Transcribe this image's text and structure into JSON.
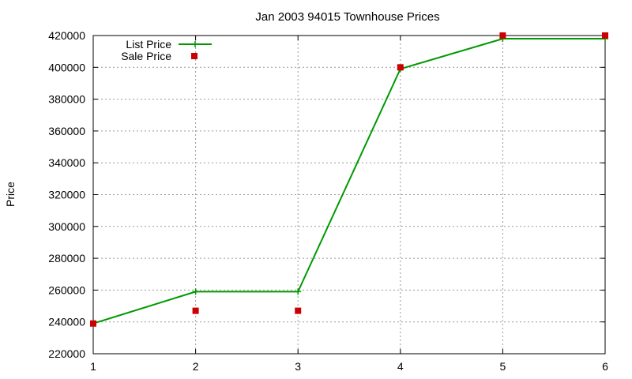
{
  "chart_data": {
    "type": "line",
    "title": "Jan 2003 94015 Townhouse Prices",
    "xlabel": "",
    "ylabel": "Price",
    "x": [
      1,
      2,
      3,
      4,
      5,
      6
    ],
    "xlim": [
      1,
      6
    ],
    "ylim": [
      220000,
      420000
    ],
    "x_ticks": [
      "1",
      "2",
      "3",
      "4",
      "5",
      "6"
    ],
    "y_ticks": [
      "220000",
      "240000",
      "260000",
      "280000",
      "300000",
      "320000",
      "340000",
      "360000",
      "380000",
      "400000",
      "420000"
    ],
    "grid": true,
    "legend_position": "top-left",
    "series": [
      {
        "name": "List Price",
        "kind": "line-points",
        "color": "#009900",
        "values": [
          239000,
          259000,
          259000,
          399000,
          418000,
          418000
        ]
      },
      {
        "name": "Sale Price",
        "kind": "points",
        "color": "#cc0000",
        "values": [
          239000,
          247000,
          247000,
          400000,
          420000,
          420000
        ]
      }
    ]
  }
}
